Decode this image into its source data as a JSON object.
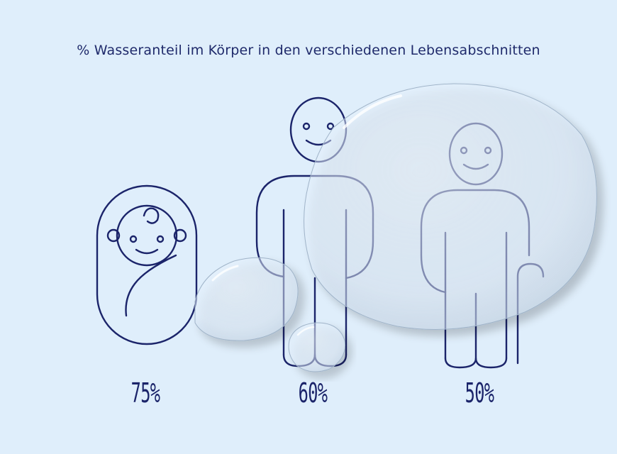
{
  "title": "% Wasseranteil im Körper in den verschiedenen Lebensabschnitten",
  "stages": [
    {
      "value": "75%",
      "icon": "baby-icon"
    },
    {
      "value": "60%",
      "icon": "adult-icon"
    },
    {
      "value": "50%",
      "icon": "elderly-icon"
    }
  ],
  "colors": {
    "background": "#dfeefb",
    "line": "#1b246a",
    "title": "#1f2a6b"
  }
}
